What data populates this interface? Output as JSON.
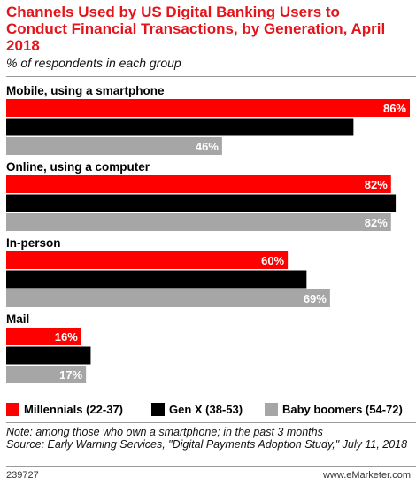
{
  "chart_data": {
    "type": "bar",
    "orientation": "horizontal",
    "title": "Channels Used by US Digital Banking Users to Conduct Financial Transactions, by Generation, April 2018",
    "subtitle": "% of respondents in each group",
    "categories": [
      "Mobile, using a smartphone",
      "Online, using a computer",
      "In-person",
      "Mail"
    ],
    "series": [
      {
        "name": "Millennials (22-37)",
        "color": "#ff0000",
        "values": [
          86,
          82,
          60,
          16
        ],
        "labels": [
          "86%",
          "82%",
          "60%",
          "16%"
        ]
      },
      {
        "name": "Gen X (38-53)",
        "color": "#000000",
        "values": [
          74,
          83,
          64,
          18
        ],
        "labels": [
          "74%",
          "83%",
          "64%",
          "18%"
        ]
      },
      {
        "name": "Baby boomers (54-72)",
        "color": "#a6a6a6",
        "values": [
          46,
          82,
          69,
          17
        ],
        "labels": [
          "46%",
          "82%",
          "69%",
          "17%"
        ]
      }
    ],
    "xlim": [
      0,
      86
    ],
    "unit": "%",
    "legend_position": "bottom",
    "grid": false
  },
  "note": "Note: among those who own a smartphone; in the past 3 months",
  "source": "Source: Early Warning Services, \"Digital Payments Adoption Study,\" July 11, 2018",
  "footer": {
    "id": "239727",
    "brand": "www.eMarketer.com"
  }
}
